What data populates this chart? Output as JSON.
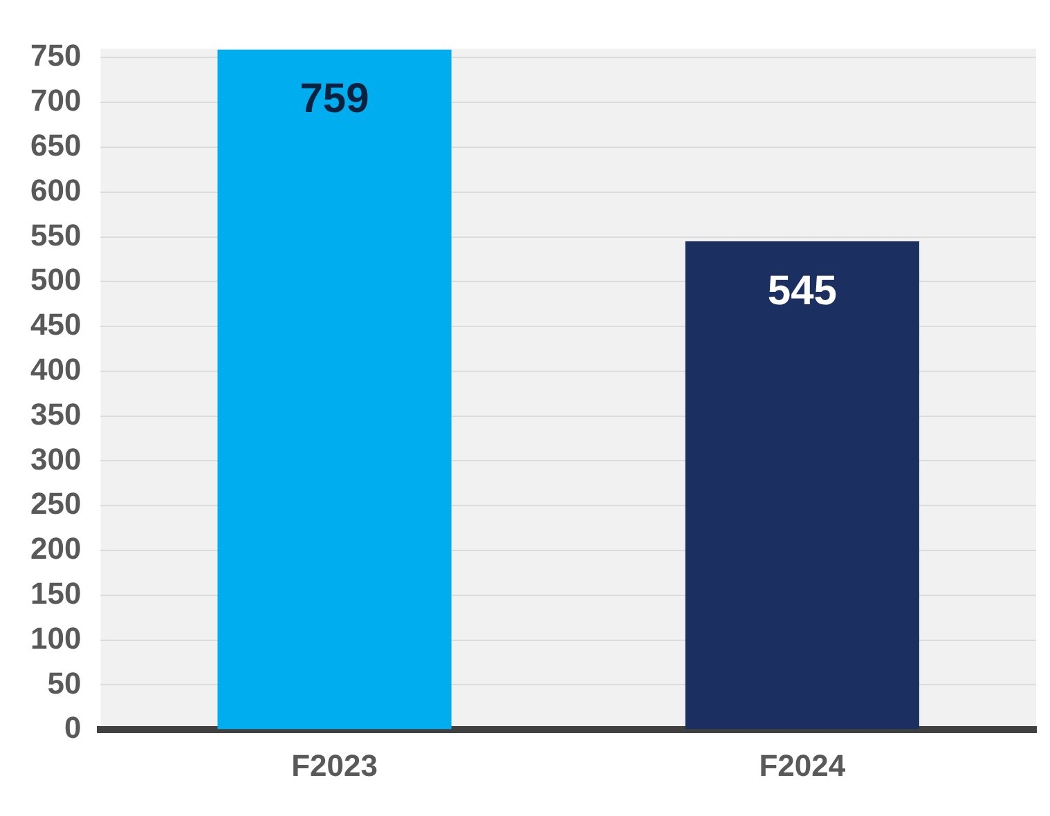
{
  "chart_data": {
    "type": "bar",
    "categories": [
      "F2023",
      "F2024"
    ],
    "values": [
      759,
      545
    ],
    "colors": [
      "#00aeef",
      "#1b3060"
    ],
    "ylim": [
      0,
      760
    ],
    "yticks": [
      0,
      50,
      100,
      150,
      200,
      250,
      300,
      350,
      400,
      450,
      500,
      550,
      600,
      650,
      700,
      750
    ],
    "grid": "y",
    "data_labels": true
  }
}
